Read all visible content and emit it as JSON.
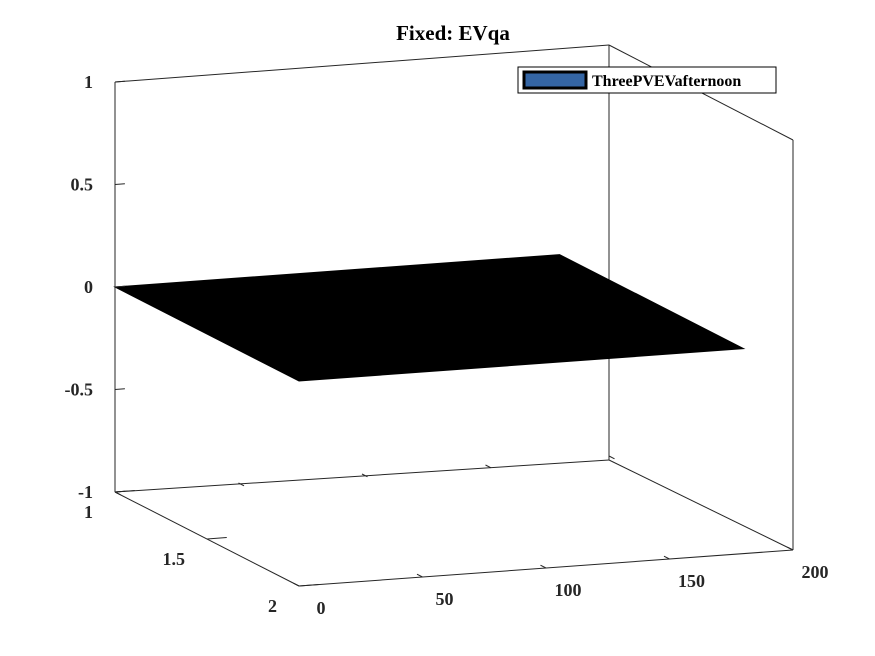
{
  "chart_data": {
    "type": "surface3d",
    "title": "Fixed: EVqa",
    "xlabel": "",
    "ylabel": "",
    "zlabel": "",
    "xlim": [
      0,
      200
    ],
    "ylim": [
      1,
      2
    ],
    "zlim": [
      -1,
      1
    ],
    "x_ticks": [
      "0",
      "50",
      "100",
      "150",
      "200"
    ],
    "y_ticks": [
      "1",
      "1.5",
      "2"
    ],
    "z_ticks": [
      "1",
      "0.5",
      "0",
      "-0.5",
      "-1"
    ],
    "x_extent": [
      0,
      180
    ],
    "y_extent": [
      1,
      2
    ],
    "surface_value": 0,
    "surface_color": "#000000",
    "legend": {
      "placement": "top-right",
      "entries": [
        {
          "name": "ThreePVEVafternoon",
          "color": "#3465a4"
        }
      ]
    },
    "grid": false,
    "box": true
  }
}
